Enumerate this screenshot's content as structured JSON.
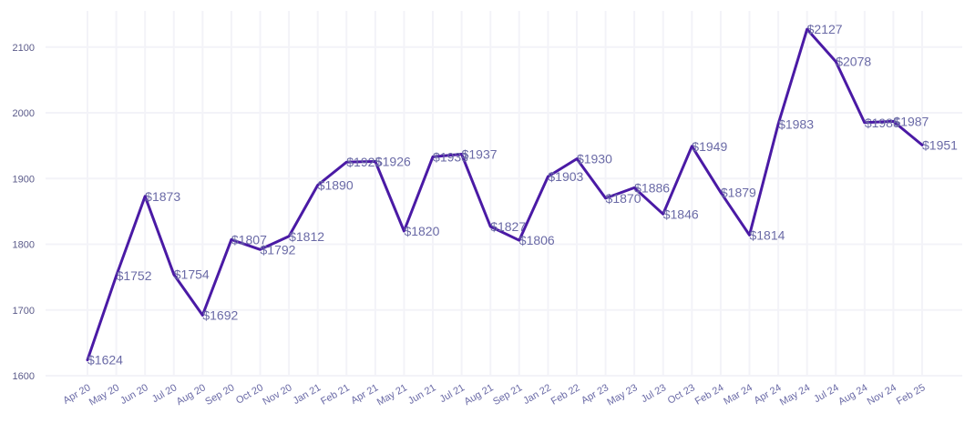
{
  "chart_data": {
    "type": "line",
    "title": "",
    "xlabel": "",
    "ylabel": "",
    "ylim": [
      1600,
      2150
    ],
    "yticks": [
      1600,
      1700,
      1800,
      1900,
      2000,
      2100
    ],
    "grid": true,
    "line_color": "#4a1aa5",
    "label_prefix": "$",
    "categories": [
      "Apr 20",
      "May 20",
      "Jun 20",
      "Jul 20",
      "Aug 20",
      "Sep 20",
      "Oct 20",
      "Nov 20",
      "Jan 21",
      "Feb 21",
      "Apr 21",
      "May 21",
      "Jun 21",
      "Jul 21",
      "Aug 21",
      "Sep 21",
      "Jan 22",
      "Feb 22",
      "Apr 23",
      "May 23",
      "Jul 23",
      "Oct 23",
      "Feb 24",
      "Mar 24",
      "Apr 24",
      "May 24",
      "Jul 24",
      "Aug 24",
      "Nov 24",
      "Feb 25"
    ],
    "values": [
      1624,
      1752,
      1873,
      1754,
      1692,
      1807,
      1792,
      1812,
      1890,
      1925,
      1926,
      1820,
      1933,
      1937,
      1827,
      1806,
      1903,
      1930,
      1870,
      1886,
      1846,
      1949,
      1879,
      1814,
      1983,
      2127,
      2078,
      1985,
      1987,
      1951
    ]
  }
}
